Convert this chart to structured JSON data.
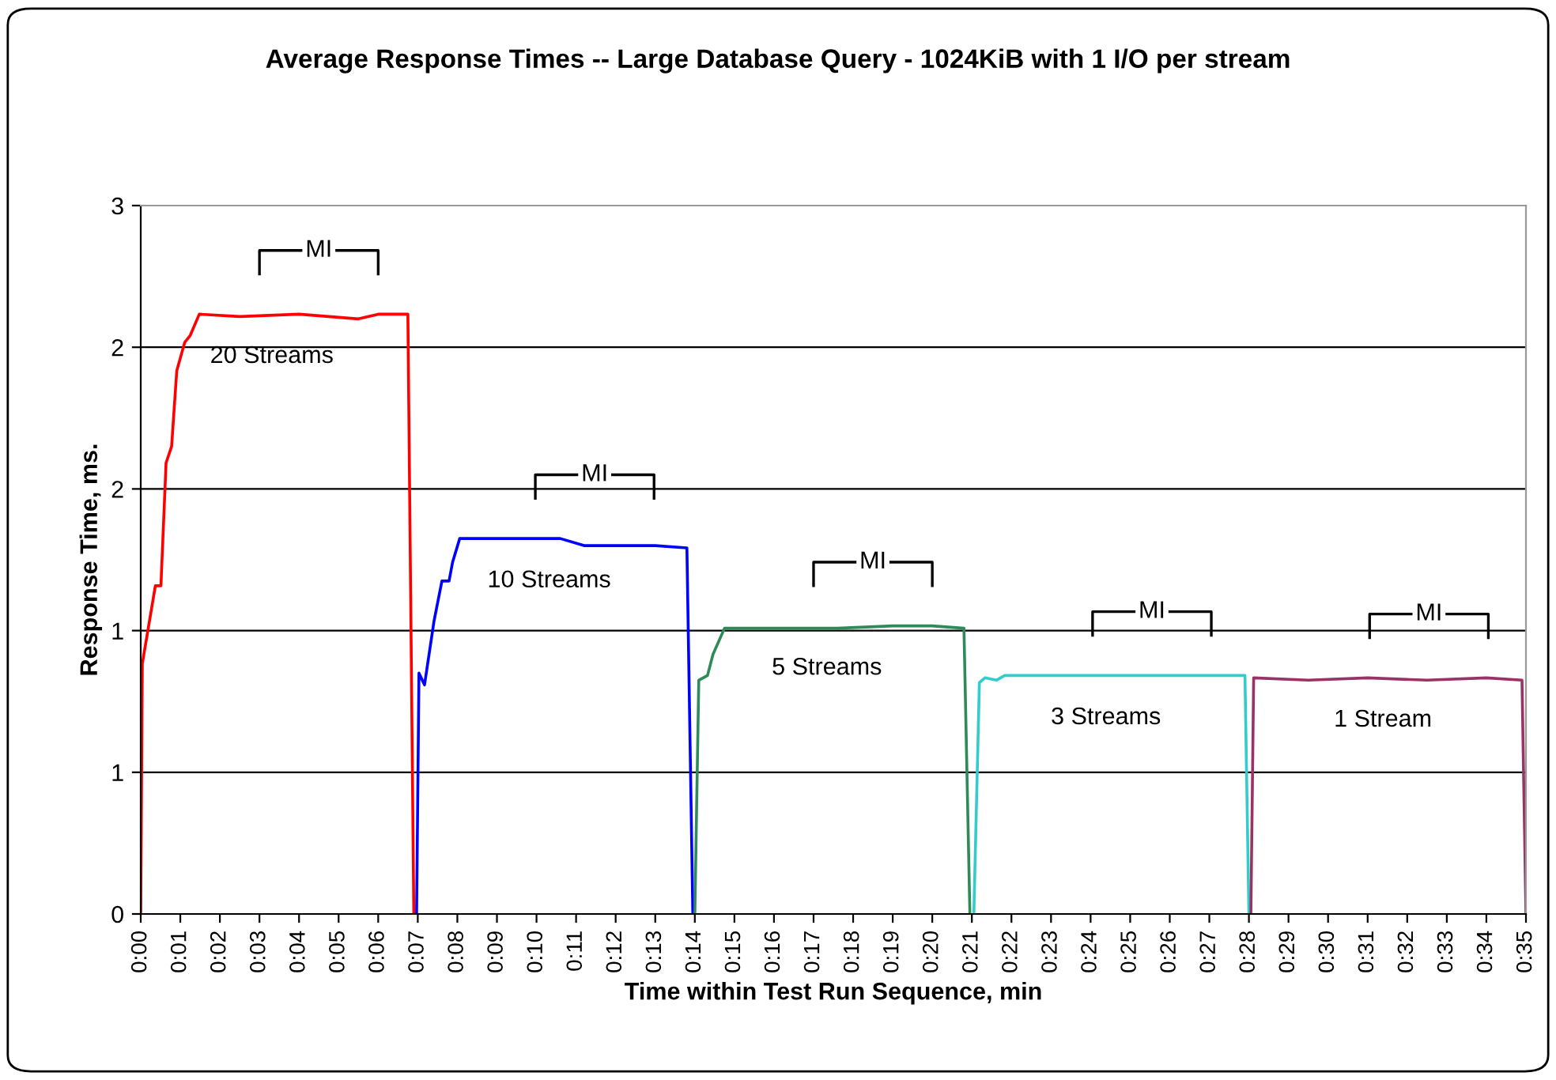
{
  "chart_data": {
    "type": "line",
    "title": "Average Response Times -- Large Database Query - 1024KiB with 1 I/O per stream",
    "xlabel": "Time within Test Run Sequence, min",
    "ylabel": "Response Time, ms.",
    "xlim": [
      0,
      35
    ],
    "xticks": [
      {
        "value": 0,
        "label": "0:00"
      },
      {
        "value": 1,
        "label": "0:01"
      },
      {
        "value": 2,
        "label": "0:02"
      },
      {
        "value": 3,
        "label": "0:03"
      },
      {
        "value": 4,
        "label": "0:04"
      },
      {
        "value": 5,
        "label": "0:05"
      },
      {
        "value": 6,
        "label": "0:06"
      },
      {
        "value": 7,
        "label": "0:07"
      },
      {
        "value": 8,
        "label": "0:08"
      },
      {
        "value": 9,
        "label": "0:09"
      },
      {
        "value": 10,
        "label": "0:10"
      },
      {
        "value": 11,
        "label": "0:11"
      },
      {
        "value": 12,
        "label": "0:12"
      },
      {
        "value": 13,
        "label": "0:13"
      },
      {
        "value": 14,
        "label": "0:14"
      },
      {
        "value": 15,
        "label": "0:15"
      },
      {
        "value": 16,
        "label": "0:16"
      },
      {
        "value": 17,
        "label": "0:17"
      },
      {
        "value": 18,
        "label": "0:18"
      },
      {
        "value": 19,
        "label": "0:19"
      },
      {
        "value": 20,
        "label": "0:20"
      },
      {
        "value": 21,
        "label": "0:21"
      },
      {
        "value": 22,
        "label": "0:22"
      },
      {
        "value": 23,
        "label": "0:23"
      },
      {
        "value": 24,
        "label": "0:24"
      },
      {
        "value": 25,
        "label": "0:25"
      },
      {
        "value": 26,
        "label": "0:26"
      },
      {
        "value": 27,
        "label": "0:27"
      },
      {
        "value": 28,
        "label": "0:28"
      },
      {
        "value": 29,
        "label": "0:29"
      },
      {
        "value": 30,
        "label": "0:30"
      },
      {
        "value": 31,
        "label": "0:31"
      },
      {
        "value": 32,
        "label": "0:32"
      },
      {
        "value": 33,
        "label": "0:33"
      },
      {
        "value": 34,
        "label": "0:34"
      },
      {
        "value": 35,
        "label": "0:35"
      }
    ],
    "ylim": [
      0,
      3
    ],
    "yticks": [
      0,
      {
        "value": 0.6,
        "label": "1"
      },
      {
        "value": 1.2,
        "label": "1"
      },
      {
        "value": 1.8,
        "label": "2"
      },
      {
        "value": 2.4,
        "label": "2"
      },
      3
    ],
    "grid": "y",
    "marker": "none",
    "line_style": "solid",
    "series": [
      {
        "name": "20 Streams",
        "color": "#ff0000",
        "x": [
          0,
          0.04,
          0.17,
          0.37,
          0.51,
          0.64,
          0.78,
          0.91,
          1.11,
          1.25,
          1.48,
          2.5,
          4.0,
          5.5,
          6.0,
          6.75,
          6.9
        ],
        "values": [
          0,
          1.06,
          1.19,
          1.39,
          1.39,
          1.91,
          1.98,
          2.3,
          2.42,
          2.45,
          2.54,
          2.53,
          2.54,
          2.52,
          2.54,
          2.54,
          0
        ]
      },
      {
        "name": "10 Streams",
        "color": "#0000ff",
        "x": [
          6.97,
          7.03,
          7.17,
          7.41,
          7.61,
          7.79,
          7.88,
          8.06,
          9.0,
          10.6,
          11.2,
          12.0,
          13.0,
          13.8,
          13.95
        ],
        "values": [
          0,
          1.02,
          0.97,
          1.24,
          1.41,
          1.41,
          1.49,
          1.59,
          1.59,
          1.59,
          1.56,
          1.56,
          1.56,
          1.55,
          0
        ]
      },
      {
        "name": "5 Streams",
        "color": "#2e8b57",
        "x": [
          14.0,
          14.1,
          14.32,
          14.46,
          14.75,
          16.0,
          17.6,
          19.0,
          20.0,
          20.8,
          20.95
        ],
        "values": [
          0,
          0.99,
          1.01,
          1.1,
          1.21,
          1.21,
          1.21,
          1.22,
          1.22,
          1.21,
          0
        ]
      },
      {
        "name": "3 Streams",
        "color": "#33cccc",
        "x": [
          21.05,
          21.19,
          21.33,
          21.62,
          21.83,
          25.0,
          27.9,
          28.0
        ],
        "values": [
          0,
          0.98,
          1.0,
          0.99,
          1.01,
          1.01,
          1.01,
          0
        ]
      },
      {
        "name": "1 Stream",
        "color": "#993366",
        "x": [
          28.05,
          28.12,
          29.5,
          31.0,
          32.5,
          34.0,
          34.9,
          35.0
        ],
        "values": [
          0,
          1.0,
          0.99,
          1.0,
          0.99,
          1.0,
          0.99,
          0
        ]
      }
    ],
    "annotations": [
      "MI",
      "MI",
      "MI",
      "MI",
      "MI"
    ]
  }
}
